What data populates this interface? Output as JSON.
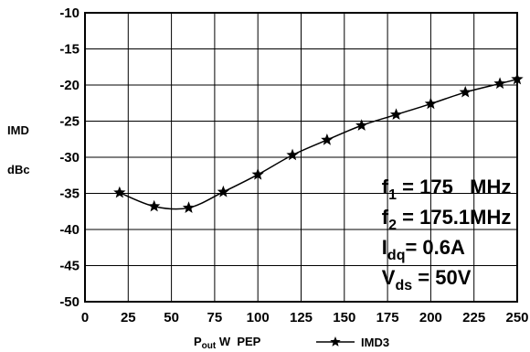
{
  "chart_data": {
    "type": "line",
    "ylabel_line1": "IMD",
    "ylabel_line2": "dBc",
    "xlabel_main": "P",
    "xlabel_sub": "out",
    "xlabel_rest": " W  PEP",
    "xlim": [
      0,
      250
    ],
    "ylim": [
      -50,
      -10
    ],
    "x_ticks": [
      "0",
      "25",
      "50",
      "75",
      "100",
      "125",
      "150",
      "175",
      "200",
      "225",
      "250"
    ],
    "y_ticks": [
      "-10",
      "-15",
      "-20",
      "-25",
      "-30",
      "-35",
      "-40",
      "-45",
      "-50"
    ],
    "grid": true,
    "legend_position": "bottom-center",
    "series": [
      {
        "name": "IMD3",
        "marker": "star",
        "x": [
          20,
          40,
          60,
          80,
          100,
          120,
          140,
          160,
          180,
          200,
          220,
          240,
          250
        ],
        "y": [
          -34.9,
          -36.8,
          -37.0,
          -34.8,
          -32.4,
          -29.7,
          -27.6,
          -25.6,
          -24.1,
          -22.6,
          -21.0,
          -19.8,
          -19.2
        ]
      }
    ],
    "annotations": [
      {
        "main": "f",
        "sub": "1",
        "rest": " = 175   MHz"
      },
      {
        "main": "f",
        "sub": "2",
        "rest": " = 175.1MHz"
      },
      {
        "main": "I",
        "sub": "dq",
        "rest": "= 0.6A"
      },
      {
        "main": "V",
        "sub": "ds",
        "rest": " = 50V"
      }
    ]
  }
}
